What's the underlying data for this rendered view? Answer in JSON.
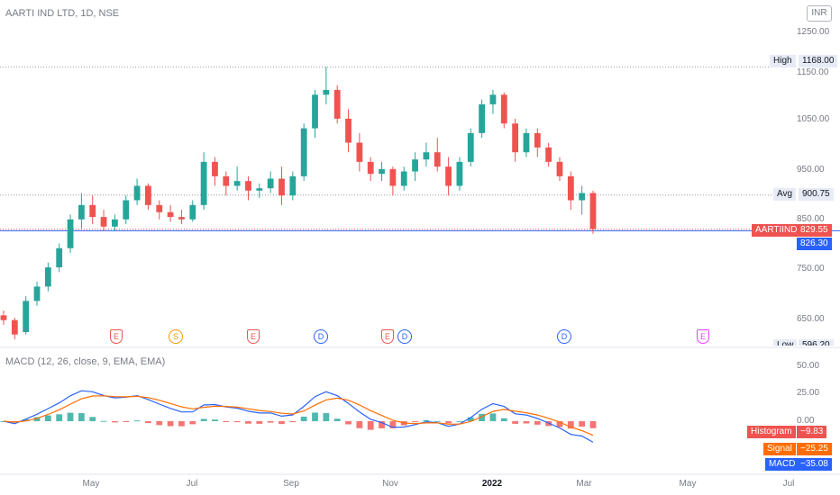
{
  "title": "AARTI IND LTD, 1D, NSE",
  "currency": "INR",
  "price_axis": [
    "1250.00",
    "1150.00",
    "1050.00",
    "950.00",
    "850.00",
    "750.00",
    "650.00"
  ],
  "macd_axis": [
    "50.00",
    "25.00",
    "0.00"
  ],
  "time_axis": [
    "May",
    "Jul",
    "Sep",
    "Nov",
    "2022",
    "Mar",
    "May",
    "Jul"
  ],
  "tags": {
    "high_label": "High",
    "high_value": "1168.00",
    "avg_label": "Avg",
    "avg_value": "900.75",
    "symbol_label": "AARTIIND",
    "symbol_value": "829.55",
    "blue_value": "826.30",
    "low_label": "Low",
    "low_value": "596.20"
  },
  "macd": {
    "title": "MACD (12, 26, close, 9, EMA, EMA)",
    "histogram_label": "Histogram",
    "histogram_value": "−9.83",
    "signal_label": "Signal",
    "signal_value": "−25.25",
    "macd_label": "MACD",
    "macd_value": "−35.08"
  },
  "events": [
    {
      "letter": "E",
      "kind": "earnings"
    },
    {
      "letter": "S",
      "kind": "split"
    },
    {
      "letter": "E",
      "kind": "earnings"
    },
    {
      "letter": "D",
      "kind": "dividend"
    },
    {
      "letter": "E",
      "kind": "earnings"
    },
    {
      "letter": "D",
      "kind": "dividend"
    },
    {
      "letter": "D",
      "kind": "dividend"
    },
    {
      "letter": "E",
      "kind": "earnings-future"
    }
  ],
  "colors": {
    "up": "#26a69a",
    "down": "#ef5350",
    "macd_line": "#2962ff",
    "signal_line": "#ff6d00",
    "hist_up": "#26a69a",
    "hist_down": "#ef5350"
  },
  "chart_data": {
    "type": "candlestick",
    "symbol": "AARTIIND",
    "y_range": [
      585,
      1270
    ],
    "high": 1168.0,
    "avg": 900.75,
    "last": 829.55,
    "low": 596.2,
    "ohlc_approx": [
      [
        650,
        660,
        630,
        640
      ],
      [
        640,
        645,
        600,
        610
      ],
      [
        615,
        690,
        610,
        680
      ],
      [
        680,
        720,
        670,
        710
      ],
      [
        710,
        760,
        700,
        750
      ],
      [
        750,
        800,
        740,
        790
      ],
      [
        790,
        860,
        780,
        850
      ],
      [
        850,
        905,
        830,
        880
      ],
      [
        880,
        900,
        840,
        855
      ],
      [
        855,
        870,
        825,
        835
      ],
      [
        835,
        860,
        825,
        850
      ],
      [
        850,
        900,
        840,
        890
      ],
      [
        890,
        935,
        880,
        920
      ],
      [
        920,
        925,
        870,
        880
      ],
      [
        880,
        890,
        850,
        865
      ],
      [
        865,
        880,
        845,
        855
      ],
      [
        855,
        870,
        840,
        850
      ],
      [
        850,
        890,
        845,
        880
      ],
      [
        880,
        990,
        870,
        970
      ],
      [
        970,
        980,
        920,
        940
      ],
      [
        940,
        950,
        900,
        920
      ],
      [
        920,
        960,
        910,
        930
      ],
      [
        930,
        940,
        890,
        910
      ],
      [
        910,
        925,
        895,
        915
      ],
      [
        915,
        950,
        905,
        935
      ],
      [
        935,
        960,
        880,
        900
      ],
      [
        900,
        950,
        890,
        940
      ],
      [
        940,
        1050,
        930,
        1040
      ],
      [
        1040,
        1120,
        1020,
        1110
      ],
      [
        1110,
        1168,
        1090,
        1120
      ],
      [
        1120,
        1130,
        1050,
        1060
      ],
      [
        1060,
        1080,
        990,
        1010
      ],
      [
        1010,
        1030,
        950,
        970
      ],
      [
        970,
        980,
        930,
        945
      ],
      [
        945,
        970,
        930,
        955
      ],
      [
        955,
        960,
        900,
        920
      ],
      [
        920,
        960,
        910,
        950
      ],
      [
        950,
        990,
        930,
        975
      ],
      [
        975,
        1010,
        960,
        990
      ],
      [
        990,
        1020,
        950,
        960
      ],
      [
        960,
        980,
        900,
        920
      ],
      [
        920,
        980,
        910,
        970
      ],
      [
        970,
        1040,
        960,
        1030
      ],
      [
        1030,
        1100,
        1020,
        1090
      ],
      [
        1090,
        1120,
        1070,
        1110
      ],
      [
        1110,
        1115,
        1040,
        1050
      ],
      [
        1050,
        1060,
        970,
        990
      ],
      [
        990,
        1040,
        980,
        1030
      ],
      [
        1030,
        1040,
        980,
        1000
      ],
      [
        1000,
        1010,
        960,
        970
      ],
      [
        970,
        980,
        930,
        940
      ],
      [
        940,
        950,
        870,
        890
      ],
      [
        890,
        920,
        860,
        905
      ],
      [
        905,
        910,
        820,
        830
      ]
    ]
  }
}
